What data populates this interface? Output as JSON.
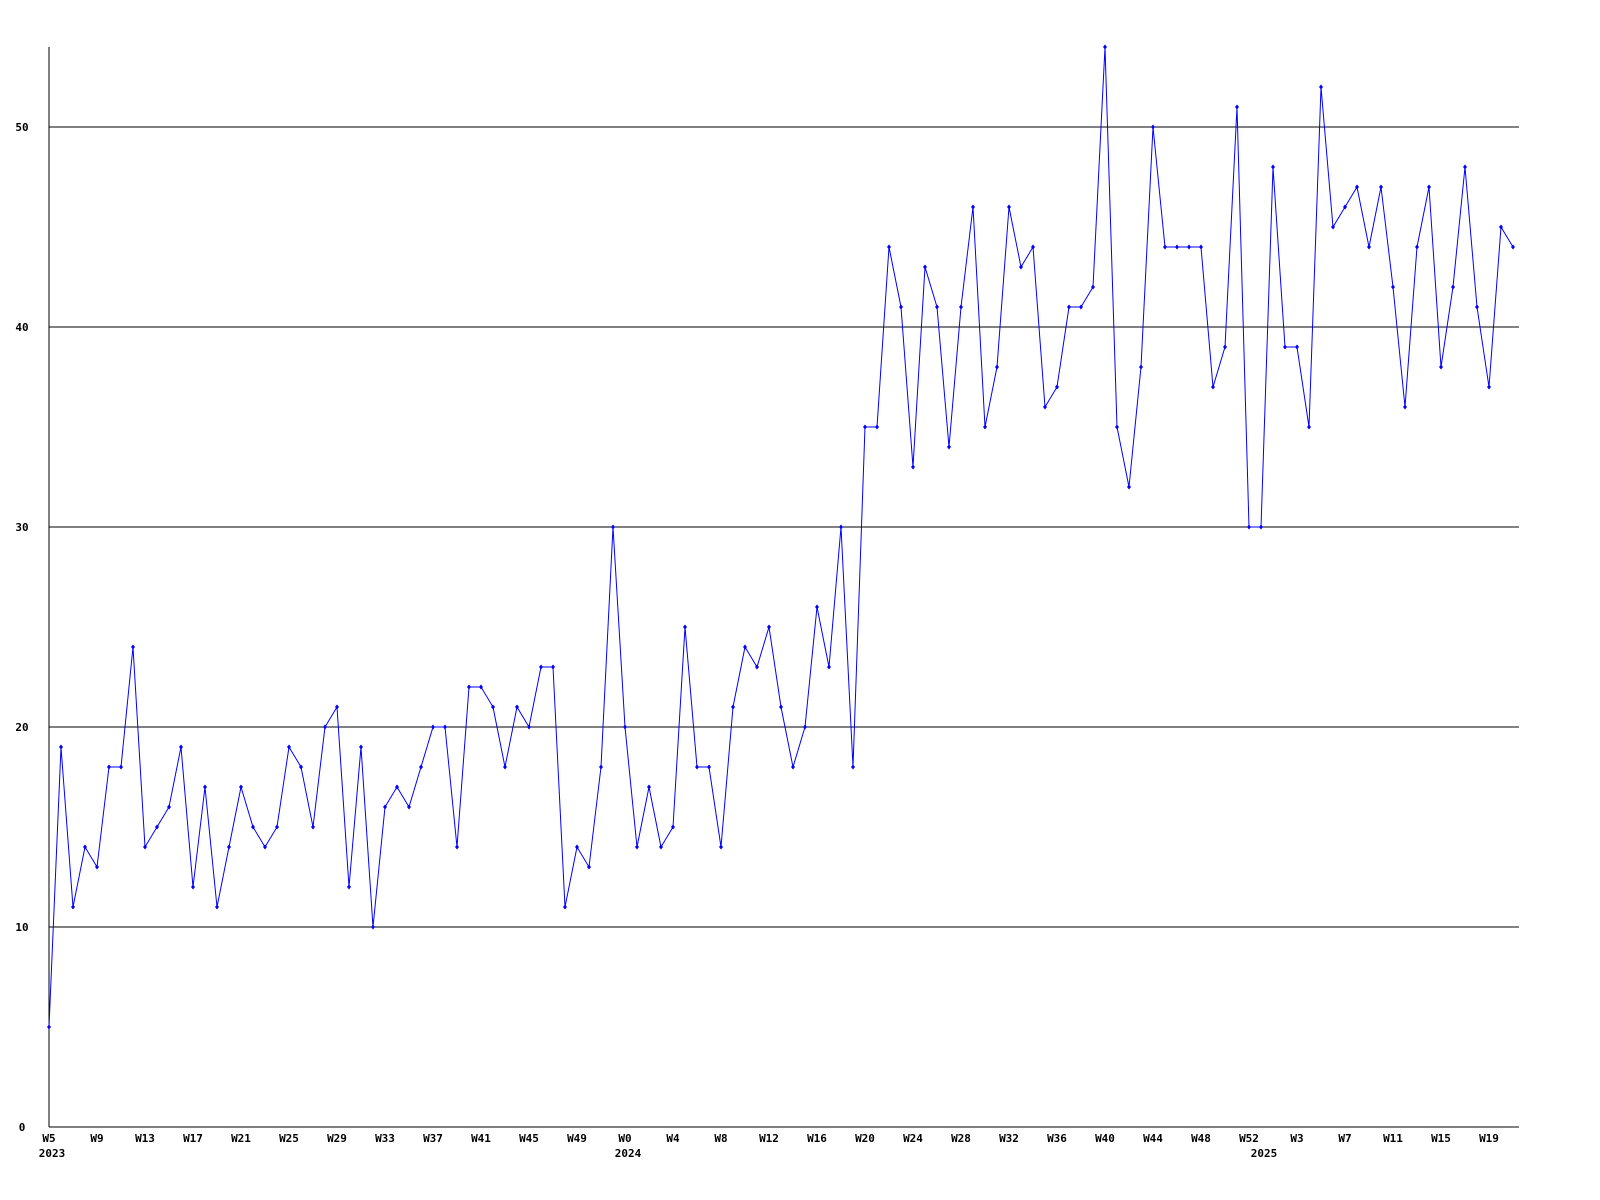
{
  "chart_data": {
    "type": "line",
    "categories": [
      "W5",
      null,
      null,
      null,
      "W9",
      null,
      null,
      null,
      "W13",
      null,
      null,
      null,
      "W17",
      null,
      null,
      null,
      "W21",
      null,
      null,
      null,
      "W25",
      null,
      null,
      null,
      "W29",
      null,
      null,
      null,
      "W33",
      null,
      null,
      null,
      "W37",
      null,
      null,
      null,
      "W41",
      null,
      null,
      null,
      "W45",
      null,
      null,
      null,
      "W49",
      null,
      null,
      null,
      "W0",
      null,
      null,
      null,
      "W4",
      null,
      null,
      null,
      "W8",
      null,
      null,
      null,
      "W12",
      null,
      null,
      null,
      "W16",
      null,
      null,
      null,
      "W20",
      null,
      null,
      null,
      "W24",
      null,
      null,
      null,
      "W28",
      null,
      null,
      null,
      "W32",
      null,
      null,
      null,
      "W36",
      null,
      null,
      null,
      "W40",
      null,
      null,
      null,
      "W44",
      null,
      null,
      null,
      "W48",
      null,
      null,
      null,
      "W52",
      null,
      null,
      null,
      "W3",
      null,
      null,
      null,
      "W7",
      null,
      null,
      null,
      "W11",
      null,
      null,
      null,
      "W15",
      null,
      null,
      null,
      "W19",
      null,
      null
    ],
    "year_labels": [
      {
        "index": 0,
        "label": "2023"
      },
      {
        "index": 48,
        "label": "2024"
      },
      {
        "index": 101,
        "label": "2025"
      }
    ],
    "values": [
      5,
      19,
      11,
      14,
      13,
      18,
      18,
      24,
      14,
      15,
      16,
      19,
      12,
      17,
      11,
      14,
      17,
      15,
      14,
      15,
      19,
      18,
      15,
      20,
      21,
      12,
      19,
      10,
      16,
      17,
      16,
      18,
      20,
      20,
      14,
      22,
      22,
      21,
      18,
      21,
      20,
      23,
      23,
      11,
      14,
      13,
      18,
      30,
      20,
      14,
      17,
      14,
      15,
      25,
      18,
      18,
      14,
      21,
      24,
      23,
      25,
      21,
      18,
      20,
      26,
      23,
      30,
      18,
      35,
      35,
      44,
      41,
      33,
      43,
      41,
      34,
      41,
      46,
      35,
      38,
      46,
      43,
      44,
      36,
      37,
      41,
      41,
      42,
      54,
      35,
      32,
      38,
      50,
      44,
      44,
      44,
      44,
      37,
      39,
      51,
      30,
      30,
      48,
      39,
      39,
      35,
      52,
      45,
      46,
      47,
      44,
      47,
      42,
      36,
      44,
      47,
      38,
      42,
      48,
      41,
      37,
      45,
      44
    ],
    "color": "#0000ff",
    "ylim": [
      0,
      54
    ],
    "yticks": [
      0,
      10,
      20,
      30,
      40,
      50
    ],
    "grid": true
  }
}
